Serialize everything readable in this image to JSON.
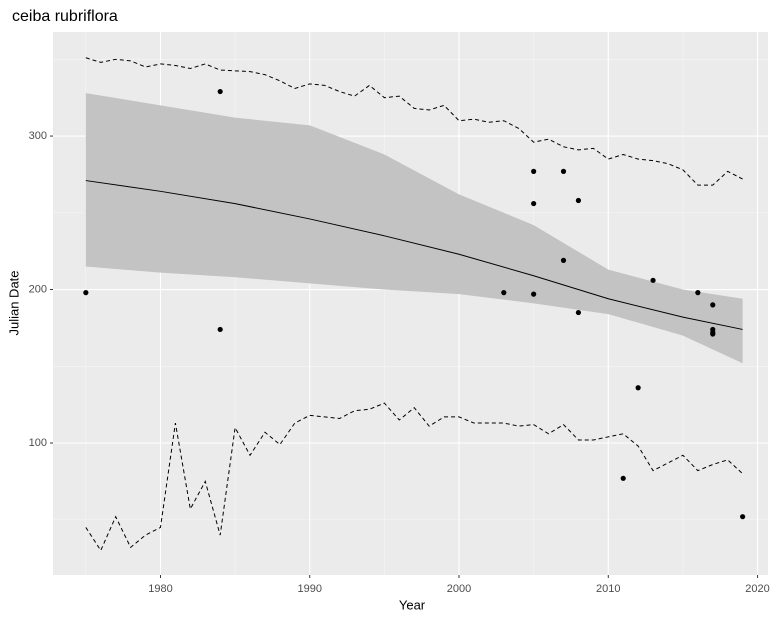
{
  "chart_data": {
    "type": "scatter",
    "title": "ceiba rubriflora",
    "x_label": "Year",
    "y_label": "Julian Date",
    "xlim": [
      1972.8,
      2020.7
    ],
    "ylim": [
      14,
      367.8
    ],
    "xticks": [
      1980,
      1990,
      2000,
      2010,
      2020
    ],
    "yticks": [
      100,
      200,
      300
    ],
    "grid": true,
    "points": {
      "color": "#000000",
      "x": [
        1975,
        1984,
        1984,
        2003,
        2005,
        2005,
        2005,
        2007,
        2007,
        2008,
        2008,
        2013,
        2016,
        2017,
        2017,
        2017,
        2017,
        2012,
        2011,
        2019
      ],
      "y": [
        198,
        329,
        174,
        198,
        197,
        277,
        256,
        277,
        219,
        258,
        185,
        206,
        198,
        190,
        174,
        172,
        171,
        136,
        77,
        52
      ]
    },
    "fit": {
      "color": "#000000",
      "x": [
        1975,
        1980,
        1985,
        1990,
        1995,
        2000,
        2005,
        2010,
        2015,
        2019
      ],
      "values": [
        271,
        264,
        256,
        246,
        235,
        223,
        209,
        194,
        182,
        174
      ]
    },
    "ribbon": {
      "color": "#c3c3c3",
      "x": [
        1975,
        1980,
        1985,
        1990,
        1995,
        2000,
        2005,
        2010,
        2015,
        2019
      ],
      "upper": [
        328,
        320,
        312,
        307,
        288,
        262,
        242,
        213,
        200,
        194
      ],
      "lower": [
        215,
        211,
        208,
        204,
        200,
        197,
        191,
        184,
        170,
        152
      ]
    },
    "upper_bound": {
      "color": "#000000",
      "x": [
        1975,
        1976,
        1977,
        1978,
        1979,
        1980,
        1981,
        1982,
        1983,
        1984,
        1986,
        1987,
        1988,
        1989,
        1990,
        1991,
        1992,
        1993,
        1994,
        1995,
        1996,
        1997,
        1998,
        1999,
        2000,
        2001,
        2002,
        2003,
        2004,
        2005,
        2006,
        2007,
        2008,
        2009,
        2010,
        2011,
        2012,
        2013,
        2014,
        2015,
        2016,
        2017,
        2018,
        2019
      ],
      "values": [
        351,
        348,
        350,
        349,
        345,
        347,
        346,
        344,
        347,
        343,
        342,
        340,
        336,
        331,
        334,
        333,
        329,
        326,
        333,
        325,
        326,
        318,
        317,
        320,
        310,
        311,
        309,
        310,
        305,
        296,
        298,
        293,
        291,
        292,
        285,
        288,
        285,
        284,
        282,
        278,
        268,
        268,
        277,
        272
      ]
    },
    "lower_bound": {
      "color": "#000000",
      "x": [
        1975,
        1976,
        1977,
        1978,
        1979,
        1980,
        1981,
        1982,
        1983,
        1984,
        1985,
        1986,
        1987,
        1988,
        1989,
        1990,
        1991,
        1992,
        1993,
        1994,
        1995,
        1996,
        1997,
        1998,
        1999,
        2000,
        2001,
        2002,
        2003,
        2004,
        2005,
        2006,
        2007,
        2008,
        2009,
        2010,
        2011,
        2012,
        2013,
        2014,
        2015,
        2016,
        2017,
        2018,
        2019
      ],
      "values": [
        45,
        30,
        52,
        32,
        40,
        45,
        113,
        57,
        75,
        40,
        110,
        92,
        107,
        99,
        113,
        118,
        117,
        116,
        121,
        122,
        126,
        115,
        123,
        111,
        117,
        117,
        113,
        113,
        113,
        111,
        112,
        106,
        112,
        102,
        102,
        104,
        106,
        98,
        82,
        87,
        92,
        82,
        86,
        89,
        80
      ]
    }
  }
}
